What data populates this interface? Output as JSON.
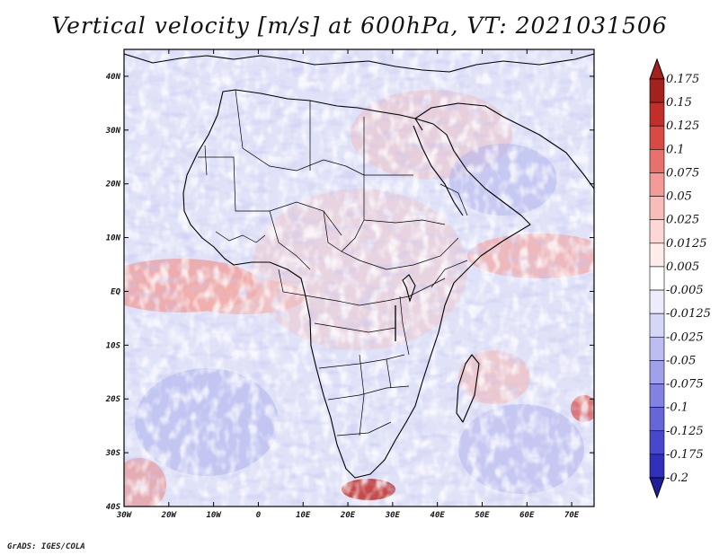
{
  "title": "Vertical velocity [m/s] at 600hPa, VT: 2021031506",
  "footer": "GrADS: IGES/COLA",
  "map": {
    "lon_range": [
      -30,
      75
    ],
    "lat_range": [
      -40,
      45
    ],
    "lon_ticks": [
      "30W",
      "20W",
      "10W",
      "0",
      "10E",
      "20E",
      "30E",
      "40E",
      "50E",
      "60E",
      "70E"
    ],
    "lon_tick_values": [
      -30,
      -20,
      -10,
      0,
      10,
      20,
      30,
      40,
      50,
      60,
      70
    ],
    "lat_ticks": [
      "40S",
      "30S",
      "20S",
      "10S",
      "EQ",
      "10N",
      "20N",
      "30N",
      "40N"
    ],
    "lat_tick_values": [
      -40,
      -30,
      -20,
      -10,
      0,
      10,
      20,
      30,
      40
    ]
  },
  "colorbar": {
    "labels": [
      "0.175",
      "0.15",
      "0.125",
      "0.1",
      "0.075",
      "0.05",
      "0.025",
      "0.0125",
      "0.005",
      "-0.005",
      "-0.0125",
      "-0.025",
      "-0.05",
      "-0.075",
      "-0.1",
      "-0.125",
      "-0.175",
      "-0.2"
    ],
    "colors": {
      "top_arrow": "#a3221d",
      "bins": [
        "#a3221d",
        "#c12f2b",
        "#d94a45",
        "#e8716c",
        "#f29b97",
        "#f9bdb9",
        "#fcd7d4",
        "#feecea",
        "#ffffff",
        "#ececfc",
        "#d6d6f7",
        "#bdbdf2",
        "#a0a0eb",
        "#8282e2",
        "#6666d8",
        "#4848cc",
        "#3030b8"
      ],
      "bottom_arrow": "#1f1f9e"
    }
  }
}
